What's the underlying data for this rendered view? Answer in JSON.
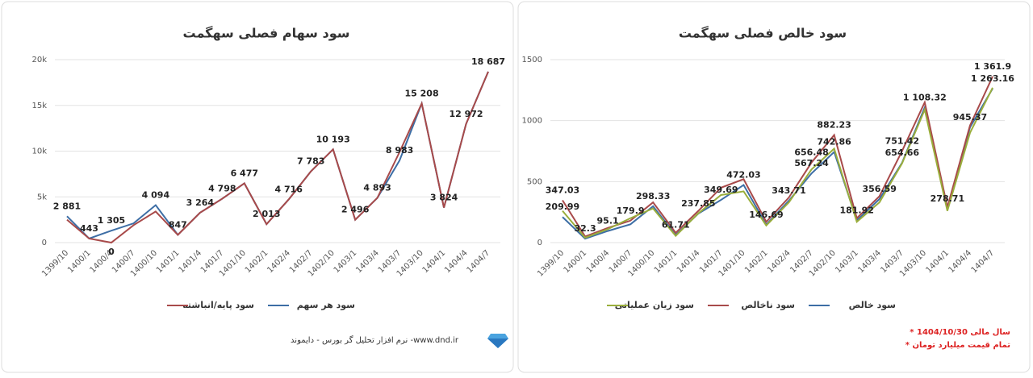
{
  "chart_data": [
    {
      "type": "line",
      "title": "سود سهام فصلی سهگمت",
      "categories": [
        "1399/10",
        "1400/1",
        "1400/4",
        "1400/7",
        "1400/10",
        "1401/1",
        "1401/4",
        "1401/7",
        "1401/10",
        "1402/1",
        "1402/4",
        "1402/7",
        "1402/10",
        "1403/1",
        "1403/4",
        "1403/7",
        "1403/10",
        "1404/1",
        "1404/4",
        "1404/7"
      ],
      "series": [
        {
          "name": "سود هر سهم",
          "color": "#3d6ea5",
          "values": [
            2881,
            443,
            1305,
            2100,
            4094,
            847,
            3264,
            4798,
            6477,
            2013,
            4716,
            7783,
            10193,
            2496,
            4893,
            8983,
            15208,
            3824,
            12972,
            18687
          ],
          "value_labels": [
            "2 881",
            "443",
            "1 305",
            null,
            "4 094",
            "847",
            "3 264",
            "4 798",
            "6 477",
            "2 013",
            "4 716",
            "7 783",
            "10 193",
            "2 496",
            "4 893",
            "8 983",
            "15 208",
            "3 824",
            "12 972",
            "18 687"
          ]
        },
        {
          "name": "سود پایه/انباشته",
          "color": "#a84a4a",
          "values": [
            2500,
            443,
            0,
            1900,
            3400,
            847,
            3264,
            4798,
            6477,
            2013,
            4716,
            7783,
            10193,
            2496,
            4893,
            9900,
            15208,
            3824,
            12972,
            18687
          ],
          "value_labels": [
            null,
            null,
            "0",
            null,
            null,
            null,
            null,
            null,
            null,
            null,
            null,
            null,
            null,
            null,
            null,
            null,
            null,
            null,
            null,
            null
          ]
        }
      ],
      "ylim": [
        0,
        20000
      ],
      "yticks": [
        0,
        {
          "value": 5000,
          "label": "5k"
        },
        {
          "value": 10000,
          "label": "10k"
        },
        {
          "value": 15000,
          "label": "15k"
        },
        {
          "value": 20000,
          "label": "20k"
        }
      ],
      "grid": true,
      "legend": "bottom"
    },
    {
      "type": "line",
      "title": "سود خالص فصلی سهگمت",
      "categories": [
        "1399/10",
        "1400/1",
        "1400/4",
        "1400/7",
        "1400/10",
        "1401/1",
        "1401/4",
        "1401/7",
        "1401/10",
        "1402/1",
        "1402/4",
        "1402/7",
        "1402/10",
        "1403/1",
        "1403/4",
        "1403/7",
        "1403/10",
        "1404/1",
        "1404/4",
        "1404/7"
      ],
      "series": [
        {
          "name": "سود خالص",
          "color": "#3d6ea5",
          "values": [
            209.99,
            32.3,
            95.1,
            150,
            298.33,
            61.71,
            237.85,
            349.69,
            472.03,
            146.69,
            343.71,
            567.24,
            742.86,
            181.92,
            356.59,
            654.66,
            1108.32,
            278.71,
            945.37,
            1263.16
          ],
          "value_labels": [
            "209.99",
            "32.3",
            "95.1",
            null,
            "298.33",
            "61.71",
            "237.85",
            "349.69",
            "472.03",
            "146.69",
            "343.71",
            "567.24",
            "742.86",
            "181.92",
            "356.59",
            "654.66",
            "1 108.32",
            "278.71",
            "945.37",
            "1 263.16"
          ]
        },
        {
          "name": "سود ناخالص",
          "color": "#a84a4a",
          "values": [
            347.03,
            50,
            120,
            179.9,
            330,
            80,
            260,
            450,
            520,
            170,
            370,
            656.48,
            882.23,
            200,
            380,
            751.42,
            1150,
            290,
            960,
            1361.9
          ],
          "value_labels": [
            "347.03",
            null,
            null,
            "179.9",
            null,
            null,
            null,
            null,
            null,
            null,
            null,
            "656.48",
            "882.23",
            null,
            null,
            "751.42",
            null,
            null,
            null,
            "1 361.9"
          ]
        },
        {
          "name": "سود زیان عملیاتی",
          "color": "#9aae3c",
          "values": [
            260,
            40,
            110,
            200,
            280,
            55,
            240,
            390,
            420,
            140,
            330,
            600,
            770,
            170,
            330,
            650,
            1090,
            260,
            900,
            1270
          ]
        }
      ],
      "ylim": [
        0,
        1500
      ],
      "yticks": [
        0,
        500,
        1000,
        1500
      ],
      "grid": true,
      "legend": "bottom"
    }
  ],
  "footer": {
    "brand": "نرم افزار تحلیل گر بورس - دایموند -www.dnd.ir",
    "notes": [
      "* سال مالی 1404/10/30",
      "* تمام قیمت میلیارد تومان"
    ]
  }
}
